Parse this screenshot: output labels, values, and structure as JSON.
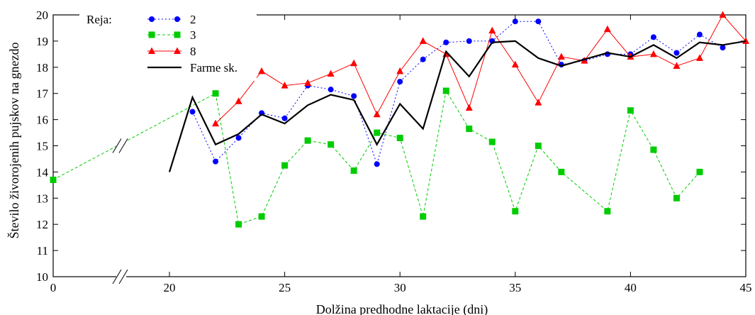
{
  "chart_data": {
    "type": "line",
    "title": "",
    "xlabel": "Dolžina predhodne laktacije (dni)",
    "ylabel": "Število živorojenih pujskov na gnezdo",
    "xlim": [
      0,
      45
    ],
    "ylim": [
      10,
      20
    ],
    "x_ticks": [
      0,
      20,
      25,
      30,
      35,
      40,
      45
    ],
    "y_ticks": [
      10,
      11,
      12,
      13,
      14,
      15,
      16,
      17,
      18,
      19,
      20
    ],
    "x_axis_break": "between 0 and 20",
    "grid": false,
    "legend": {
      "title": "Reja:",
      "placement": "top-left"
    },
    "series": [
      {
        "name": "2",
        "color": "#0000ff",
        "line": "dotted",
        "marker": "circle",
        "points": [
          [
            21,
            16.3
          ],
          [
            22,
            14.4
          ],
          [
            23,
            15.3
          ],
          [
            24,
            16.25
          ],
          [
            25,
            16.05
          ],
          [
            26,
            17.3
          ],
          [
            27,
            17.15
          ],
          [
            28,
            16.9
          ],
          [
            29,
            14.3
          ],
          [
            30,
            17.45
          ],
          [
            31,
            18.3
          ],
          [
            32,
            18.95
          ],
          [
            33,
            19.0
          ],
          [
            34,
            19.0
          ],
          [
            35,
            19.75
          ],
          [
            36,
            19.75
          ],
          [
            37,
            18.1
          ],
          [
            38,
            18.25
          ],
          [
            39,
            18.5
          ],
          [
            40,
            18.5
          ],
          [
            41,
            19.15
          ],
          [
            42,
            18.55
          ],
          [
            43,
            19.25
          ],
          [
            44,
            18.75
          ]
        ]
      },
      {
        "name": "3",
        "color": "#00cc00",
        "line": "dashed",
        "marker": "square",
        "points": [
          [
            0,
            13.7
          ],
          [
            22,
            17.0
          ],
          [
            23,
            12.0
          ],
          [
            24,
            12.3
          ],
          [
            25,
            14.25
          ],
          [
            26,
            15.2
          ],
          [
            27,
            15.05
          ],
          [
            28,
            14.05
          ],
          [
            29,
            15.5
          ],
          [
            30,
            15.3
          ],
          [
            31,
            12.3
          ],
          [
            32,
            17.1
          ],
          [
            33,
            15.65
          ],
          [
            34,
            15.15
          ],
          [
            35,
            12.5
          ],
          [
            36,
            15.0
          ],
          [
            37,
            14.0
          ],
          [
            39,
            12.5
          ],
          [
            40,
            16.35
          ],
          [
            41,
            14.85
          ],
          [
            42,
            13.0
          ],
          [
            43,
            14.0
          ]
        ]
      },
      {
        "name": "8",
        "color": "#ff0000",
        "line": "solid-thin",
        "marker": "triangle",
        "points": [
          [
            22,
            15.85
          ],
          [
            23,
            16.7
          ],
          [
            24,
            17.85
          ],
          [
            25,
            17.3
          ],
          [
            26,
            17.4
          ],
          [
            27,
            17.75
          ],
          [
            28,
            18.15
          ],
          [
            29,
            16.2
          ],
          [
            30,
            17.85
          ],
          [
            31,
            19.0
          ],
          [
            32,
            18.5
          ],
          [
            33,
            16.45
          ],
          [
            34,
            19.4
          ],
          [
            35,
            18.1
          ],
          [
            36,
            16.65
          ],
          [
            37,
            18.4
          ],
          [
            38,
            18.25
          ],
          [
            39,
            19.45
          ],
          [
            40,
            18.4
          ],
          [
            41,
            18.5
          ],
          [
            42,
            18.05
          ],
          [
            43,
            18.35
          ],
          [
            44,
            20.0
          ],
          [
            45,
            19.0
          ]
        ]
      },
      {
        "name": "Farme sk.",
        "color": "#000000",
        "line": "solid-thick",
        "marker": "none",
        "points": [
          [
            20,
            14.0
          ],
          [
            21,
            16.85
          ],
          [
            22,
            15.05
          ],
          [
            23,
            15.45
          ],
          [
            24,
            16.2
          ],
          [
            25,
            15.85
          ],
          [
            26,
            16.55
          ],
          [
            27,
            16.95
          ],
          [
            28,
            16.75
          ],
          [
            29,
            15.05
          ],
          [
            30,
            16.6
          ],
          [
            31,
            15.65
          ],
          [
            32,
            18.6
          ],
          [
            33,
            17.65
          ],
          [
            34,
            18.95
          ],
          [
            35,
            19.0
          ],
          [
            36,
            18.35
          ],
          [
            37,
            18.05
          ],
          [
            38,
            18.3
          ],
          [
            39,
            18.55
          ],
          [
            40,
            18.4
          ],
          [
            41,
            18.85
          ],
          [
            42,
            18.35
          ],
          [
            43,
            18.95
          ],
          [
            44,
            18.85
          ],
          [
            45,
            19.0
          ]
        ]
      }
    ]
  }
}
